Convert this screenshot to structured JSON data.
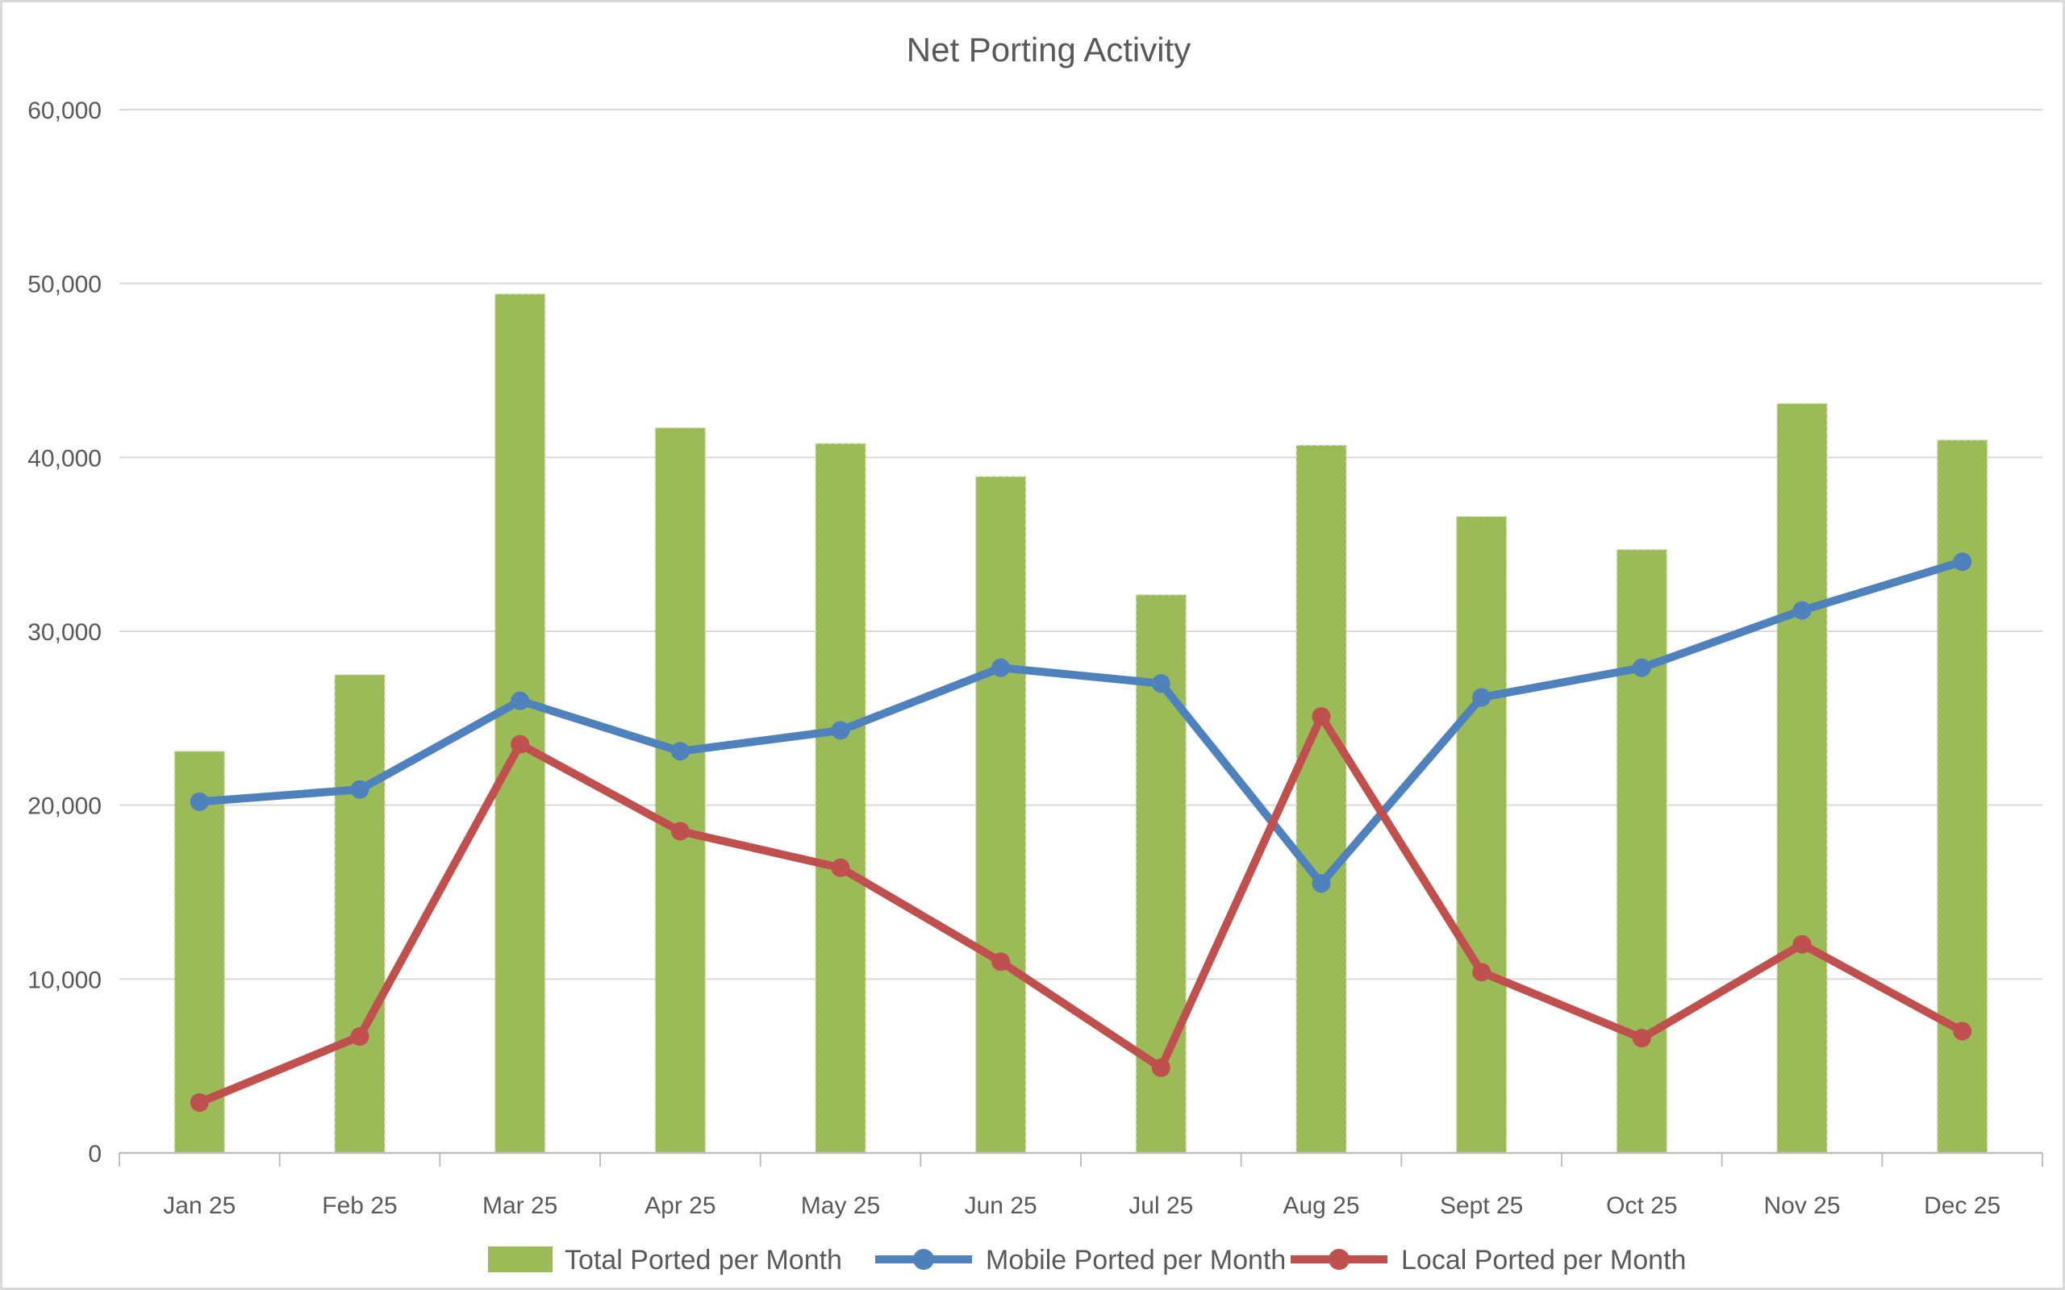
{
  "chart_data": {
    "type": "combo",
    "title": "Net Porting Activity",
    "categories": [
      "Jan 25",
      "Feb 25",
      "Mar 25",
      "Apr 25",
      "May 25",
      "Jun 25",
      "Jul 25",
      "Aug 25",
      "Sept 25",
      "Oct 25",
      "Nov 25",
      "Dec 25"
    ],
    "series": [
      {
        "name": "Total Ported per Month",
        "type": "bar",
        "color": "#9BBB59",
        "values": [
          23100,
          27500,
          49400,
          41700,
          40800,
          38900,
          32100,
          40700,
          36600,
          34700,
          43100,
          41000
        ]
      },
      {
        "name": "Mobile Ported per Month",
        "type": "line",
        "color": "#4F81BD",
        "values": [
          20200,
          20900,
          26000,
          23100,
          24300,
          27900,
          27000,
          15500,
          26200,
          27900,
          31200,
          34000
        ]
      },
      {
        "name": "Local Ported per Month",
        "type": "line",
        "color": "#C0504D",
        "values": [
          2900,
          6700,
          23500,
          18500,
          16400,
          11000,
          4900,
          25100,
          10400,
          6600,
          12000,
          7000
        ]
      }
    ],
    "y_axis": {
      "min": 0,
      "max": 60000,
      "step": 10000,
      "tick_labels": [
        "0",
        "10,000",
        "20,000",
        "30,000",
        "40,000",
        "50,000",
        "60,000"
      ]
    },
    "x_axis": {
      "label": ""
    },
    "legend_position": "bottom",
    "grid": true
  },
  "colors": {
    "background": "#FFFFFF",
    "frame_border": "#D9D9D9",
    "gridline": "#D9D9D9",
    "axis_line": "#BFBFBF",
    "tick_mark": "#BFBFBF",
    "label_text": "#595959",
    "title_text": "#595959"
  }
}
